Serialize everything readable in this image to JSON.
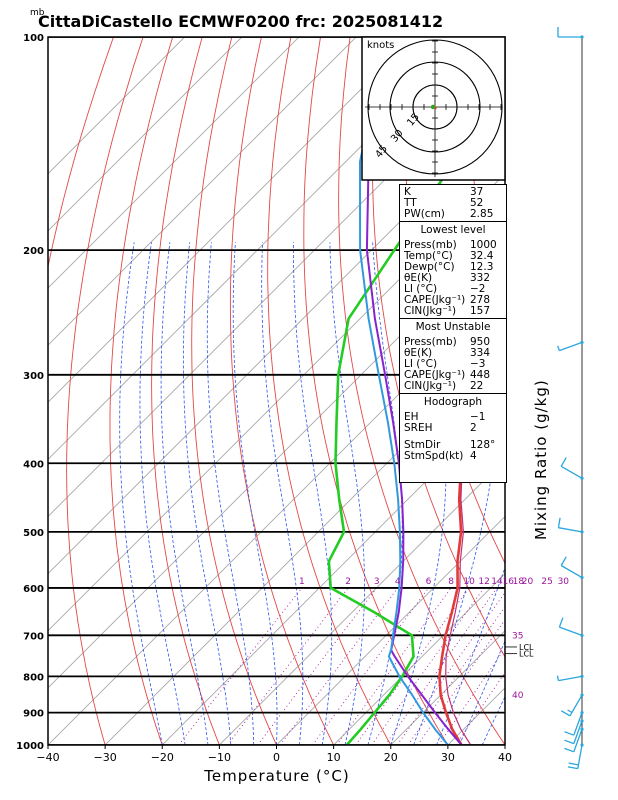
{
  "title": "CittaDiCastello  ECMWF0200  frc: 2025081412",
  "units_mb": "mb",
  "xlabel": "Temperature (°C)",
  "mixing_label": "Mixing Ratio (g/kg)",
  "hodograph": {
    "units": "knots",
    "rings": [
      "15",
      "30",
      "45"
    ]
  },
  "indices": {
    "top": [
      {
        "k": "K",
        "v": "37"
      },
      {
        "k": "TT",
        "v": "52"
      },
      {
        "k": "PW(cm)",
        "v": "2.85"
      }
    ],
    "lowest_title": "Lowest level",
    "lowest": [
      {
        "k": "Press(mb)",
        "v": "1000"
      },
      {
        "k": "Temp(°C)",
        "v": "32.4"
      },
      {
        "k": "Dewp(°C)",
        "v": "12.3"
      },
      {
        "k": "θE(K)",
        "v": "332"
      },
      {
        "k": "LI (°C)",
        "v": "−2"
      },
      {
        "k": "CAPE(Jkg⁻¹)",
        "v": "278"
      },
      {
        "k": "CIN(Jkg⁻¹)",
        "v": "157"
      }
    ],
    "unstable_title": "Most Unstable",
    "unstable": [
      {
        "k": "Press(mb)",
        "v": "950"
      },
      {
        "k": "θE(K)",
        "v": "334"
      },
      {
        "k": "LI (°C)",
        "v": "−3"
      },
      {
        "k": "CAPE(Jkg⁻¹)",
        "v": "448"
      },
      {
        "k": "CIN(Jkg⁻¹)",
        "v": "22"
      }
    ],
    "hodo_title": "Hodograph",
    "hodo": [
      {
        "k": "EH",
        "v": "−1"
      },
      {
        "k": "SREH",
        "v": "2"
      },
      {
        "k": "StmDir",
        "v": "128°"
      },
      {
        "k": "StmSpd(kt)",
        "v": "4"
      }
    ]
  },
  "chart_data": {
    "type": "line",
    "title": "CittaDiCastello  ECMWF0200  frc: 2025081412",
    "xlabel": "Temperature (°C)",
    "ylabel": "mb",
    "x_ticks": [
      -40,
      -30,
      -20,
      -10,
      0,
      10,
      20,
      30,
      40
    ],
    "p_ticks": [
      100,
      200,
      300,
      400,
      500,
      600,
      700,
      800,
      900,
      1000
    ],
    "xlim": [
      -40,
      40
    ],
    "plim": [
      100,
      1000
    ],
    "y_scale": "log",
    "mixing_ratio_labels": [
      "1",
      "2",
      "3",
      "4",
      "6",
      "8",
      "10",
      "12",
      "14",
      "16",
      "18",
      "20",
      "25",
      "30"
    ],
    "side_labels": [
      {
        "text": "35",
        "p": 700
      },
      {
        "text": "40",
        "p": 850
      }
    ],
    "level_labels": [
      {
        "text": "LCL",
        "p": 727
      },
      {
        "text": "LCL",
        "p": 743
      }
    ],
    "series": [
      {
        "name": "Temperature",
        "color": "#e23a3a",
        "width": 2.6,
        "p": [
          1000,
          950,
          900,
          850,
          800,
          750,
          700,
          650,
          600,
          550,
          500,
          450,
          400,
          350,
          300,
          275,
          250,
          225,
          200,
          150,
          100
        ],
        "t": [
          32.4,
          28,
          24,
          20,
          16.5,
          13.5,
          10.4,
          7.5,
          4.2,
          -0.5,
          -5,
          -11,
          -17,
          -24,
          -32,
          -36,
          -40,
          -39.5,
          -39,
          -42,
          -48
        ]
      },
      {
        "name": "Dew point",
        "color": "#22cc22",
        "width": 2.6,
        "p": [
          1000,
          950,
          900,
          850,
          800,
          750,
          700,
          650,
          600,
          550,
          500,
          450,
          400,
          350,
          300,
          250,
          200,
          150,
          100
        ],
        "t": [
          12.3,
          12.0,
          11.5,
          11.0,
          10.0,
          8.5,
          4.5,
          -6,
          -18,
          -23,
          -25.5,
          -32,
          -39,
          -46,
          -54,
          -62,
          -66,
          -71,
          -76
        ]
      },
      {
        "name": "Virtual temperature",
        "color": "#c03070",
        "width": 1.2,
        "p": [
          1000,
          950,
          900,
          850,
          800,
          750,
          700,
          650,
          600,
          550,
          500,
          450,
          400,
          350,
          300,
          250,
          200
        ],
        "t": [
          34,
          29.5,
          25.3,
          21.3,
          17.6,
          14.2,
          11.2,
          8.1,
          4.6,
          0,
          -4.6,
          -10.7,
          -16.8,
          -24,
          -32,
          -42,
          -52
        ]
      },
      {
        "name": "Parcel",
        "color": "#8822cc",
        "width": 2.0,
        "p": [
          1000,
          950,
          900,
          850,
          800,
          750,
          735,
          700,
          650,
          600,
          550,
          500,
          450,
          400,
          350,
          300,
          250,
          200,
          150,
          120
        ],
        "t": [
          32.4,
          27.3,
          22.1,
          16.7,
          11,
          5.2,
          3.5,
          1.4,
          -1.8,
          -5.6,
          -10,
          -15.1,
          -21,
          -27.9,
          -36.1,
          -45.8,
          -57.4,
          -70.8,
          -86,
          -95
        ]
      },
      {
        "name": "Moist profile",
        "color": "#3399dd",
        "width": 2.0,
        "p": [
          1000,
          950,
          900,
          850,
          800,
          750,
          730,
          700,
          650,
          600,
          550,
          500,
          450,
          400,
          350,
          300,
          250,
          200,
          150,
          120
        ],
        "t": [
          30,
          25,
          20,
          15,
          9.5,
          4.2,
          3.2,
          1.2,
          -2.2,
          -6,
          -10.5,
          -15.7,
          -21.7,
          -28.7,
          -37,
          -46.9,
          -58.5,
          -72,
          -87.5,
          -97
        ]
      }
    ],
    "winds": [
      {
        "p": 100,
        "dir": 270,
        "kt": 12
      },
      {
        "p": 270,
        "dir": 250,
        "kt": 8
      },
      {
        "p": 420,
        "dir": 300,
        "kt": 10
      },
      {
        "p": 500,
        "dir": 280,
        "kt": 12
      },
      {
        "p": 580,
        "dir": 300,
        "kt": 14
      },
      {
        "p": 700,
        "dir": 290,
        "kt": 12
      },
      {
        "p": 800,
        "dir": 260,
        "kt": 8
      },
      {
        "p": 850,
        "dir": 210,
        "kt": 18
      },
      {
        "p": 900,
        "dir": 200,
        "kt": 14
      },
      {
        "p": 925,
        "dir": 200,
        "kt": 12
      },
      {
        "p": 950,
        "dir": 200,
        "kt": 10
      },
      {
        "p": 1000,
        "dir": 190,
        "kt": 24
      }
    ]
  }
}
